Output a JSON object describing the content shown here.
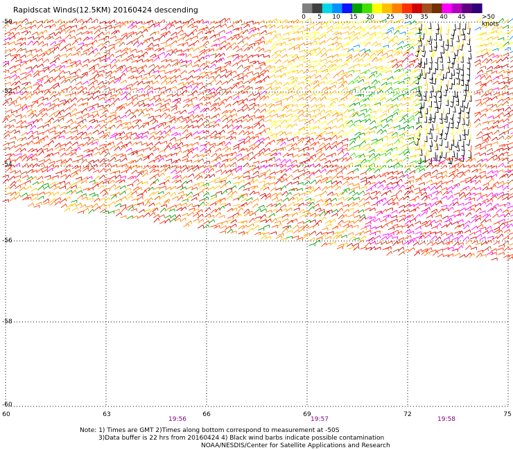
{
  "title": "Rapidscat Winds(12.5KM) 20160424 descending",
  "legend": {
    "colors": [
      "#7f7f7f",
      "#3f3f3f",
      "#00d8e8",
      "#0090ff",
      "#1010ff",
      "#00a000",
      "#40e000",
      "#ffff00",
      "#ffc000",
      "#ff8000",
      "#ff3000",
      "#d00000",
      "#a05020",
      "#703000",
      "#ff00ff",
      "#b000c0",
      "#600080",
      "#30007a"
    ],
    "labels": [
      "0",
      "5",
      "10",
      "15",
      "20",
      "25",
      "30",
      "35",
      "40",
      "45",
      ">50 knots"
    ]
  },
  "lat_labels": [
    "-50",
    "-52",
    "-54",
    "-56",
    "-58",
    "-60"
  ],
  "lon_labels": [
    "60",
    "63",
    "66",
    "69",
    "72",
    "75"
  ],
  "time_labels": [
    "19:56",
    "19:57",
    "19:58"
  ],
  "notes": [
    "Note: 1) Times are GMT 2)Times along bottom correspond to measurement at -50S",
    "3)Data buffer is 22 hrs from 20160424 4) Black wind barbs indicate possible contamination",
    "NOAA/NESDIS/Center for Satellite Applications and Research"
  ]
}
